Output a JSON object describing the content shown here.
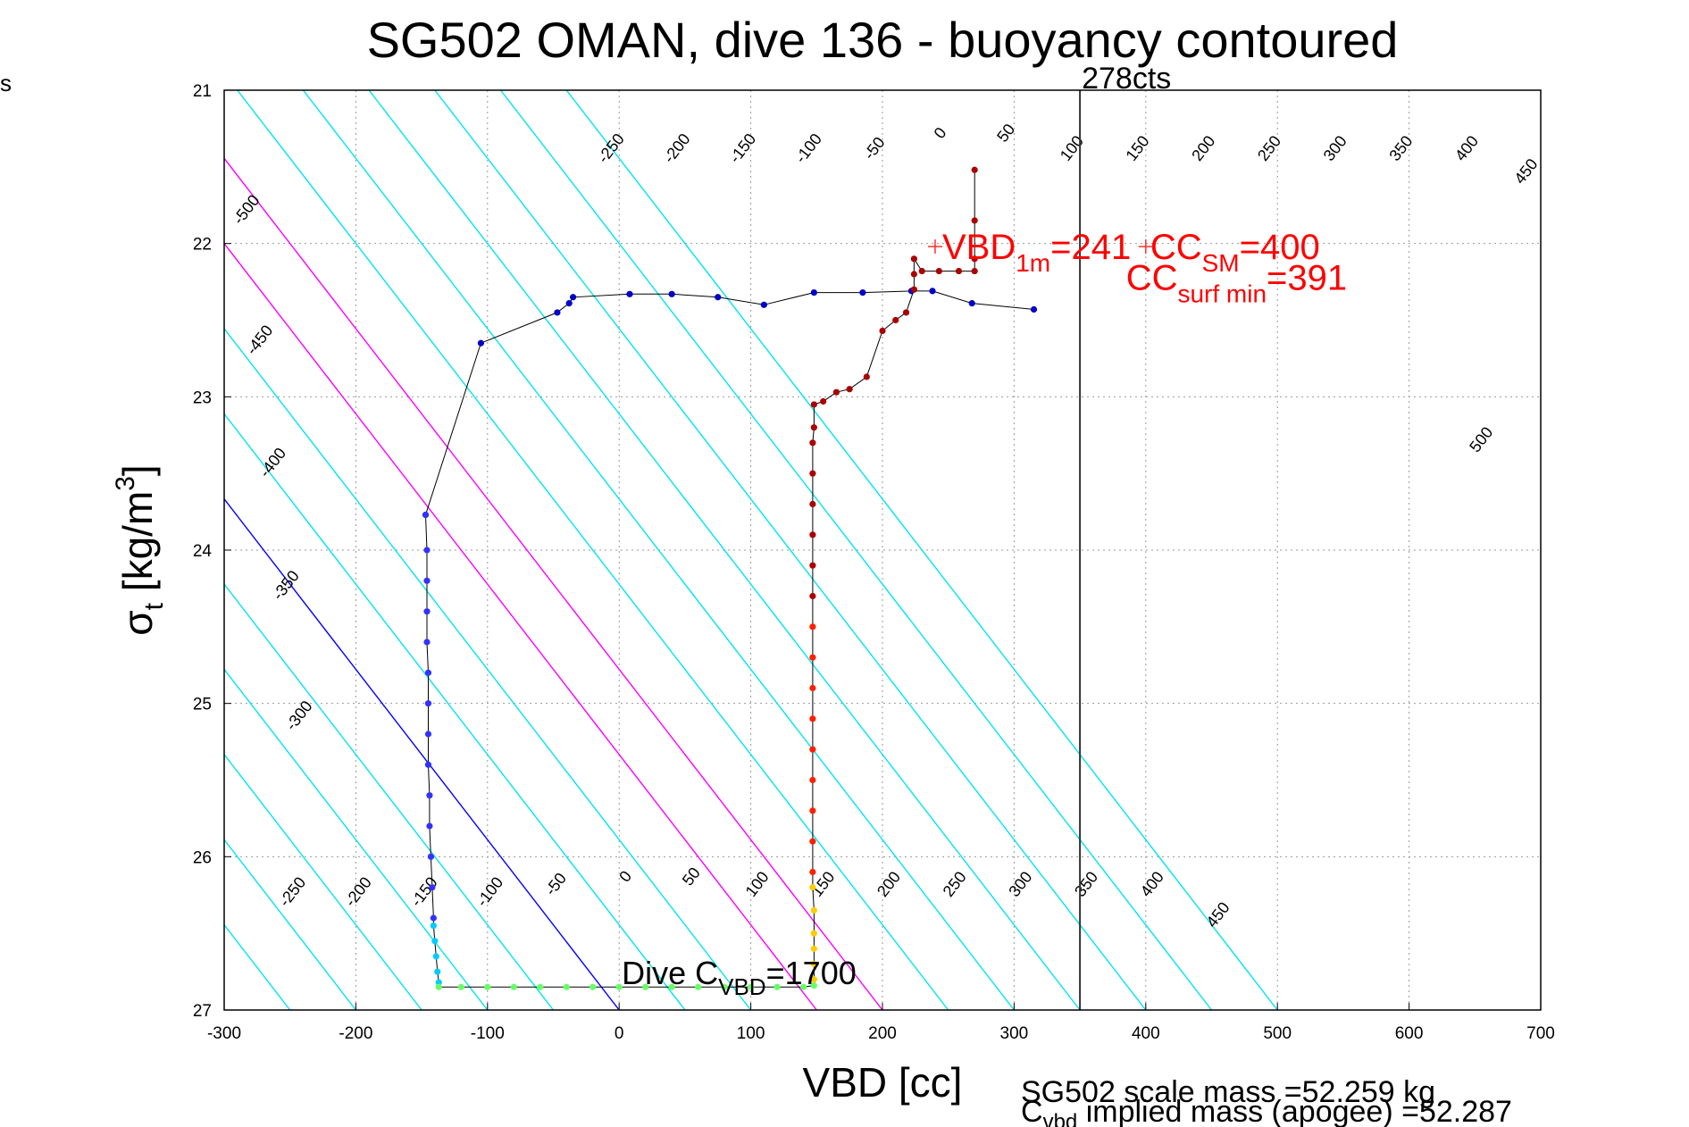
{
  "chart_data": {
    "type": "scatter",
    "title": "SG502 OMAN, dive 136 - buoyancy contoured",
    "corner_label": "s",
    "xlabel": "VBD [cc]",
    "ylabel_main": "σ",
    "ylabel_sub": "t",
    "ylabel_rest": " [kg/m",
    "ylabel_sup": "3",
    "ylabel_close": "]",
    "xlim": [
      -300,
      700
    ],
    "ylim": [
      27,
      21
    ],
    "y_reversed": true,
    "grid": "dotted",
    "x_ticks": [
      -300,
      -200,
      -100,
      0,
      100,
      200,
      300,
      400,
      500,
      600,
      700
    ],
    "x_tick_labels": [
      "-300",
      "-200",
      "-100",
      "0",
      "100",
      "200",
      "300",
      "400",
      "500",
      "600",
      "700"
    ],
    "y_ticks": [
      21,
      22,
      23,
      24,
      25,
      26,
      27
    ],
    "y_tick_labels": [
      "21",
      "22",
      "23",
      "24",
      "25",
      "26",
      "27"
    ],
    "contour_slope_cc_per_sigma": 90,
    "contour_levels": [
      -500,
      -450,
      -400,
      -350,
      -300,
      -250,
      -200,
      -150,
      -100,
      -50,
      0,
      50,
      100,
      150,
      200,
      250,
      300,
      350,
      400,
      450,
      500
    ],
    "contour_level_labels": [
      "-500",
      "-450",
      "-400",
      "-350",
      "-300",
      "-250",
      "-200",
      "-150",
      "-100",
      "-50",
      "0",
      "50",
      "100",
      "150",
      "200",
      "250",
      "300",
      "350",
      "400",
      "450",
      "500"
    ],
    "contour_colors": {
      "default": "#00e5ee",
      "zero": "#0000ff",
      "highlight": "#ff00ff"
    },
    "highlight_levels": [
      150,
      200
    ],
    "contour_labels_top": [
      {
        "level": -500,
        "x": -280,
        "y": 21.8,
        "text": "-500"
      },
      {
        "level": -450,
        "x": -270,
        "y": 22.65,
        "text": "-450"
      },
      {
        "level": -400,
        "x": -260,
        "y": 23.45,
        "text": "-400"
      },
      {
        "level": -350,
        "x": -250,
        "y": 24.25,
        "text": "-350"
      },
      {
        "level": -300,
        "x": -240,
        "y": 25.1,
        "text": "-300"
      },
      {
        "level": -250,
        "x": -3,
        "y": 21.4,
        "text": "-250"
      },
      {
        "level": -200,
        "x": 47,
        "y": 21.4,
        "text": "-200"
      },
      {
        "level": -150,
        "x": 97,
        "y": 21.4,
        "text": "-150"
      },
      {
        "level": -100,
        "x": 147,
        "y": 21.4,
        "text": "-100"
      },
      {
        "level": -50,
        "x": 197,
        "y": 21.4,
        "text": "-50"
      },
      {
        "level": 0,
        "x": 247,
        "y": 21.3,
        "text": "0"
      },
      {
        "level": 50,
        "x": 297,
        "y": 21.3,
        "text": "50"
      },
      {
        "level": 100,
        "x": 347,
        "y": 21.4,
        "text": "100"
      },
      {
        "level": 150,
        "x": 397,
        "y": 21.4,
        "text": "150"
      },
      {
        "level": 200,
        "x": 447,
        "y": 21.4,
        "text": "200"
      },
      {
        "level": 250,
        "x": 497,
        "y": 21.4,
        "text": "250"
      },
      {
        "level": 300,
        "x": 547,
        "y": 21.4,
        "text": "300"
      },
      {
        "level": 350,
        "x": 597,
        "y": 21.4,
        "text": "350"
      },
      {
        "level": 400,
        "x": 647,
        "y": 21.4,
        "text": "400"
      },
      {
        "level": 450,
        "x": 692,
        "y": 21.55,
        "text": "450"
      },
      {
        "level": 500,
        "x": 658,
        "y": 23.3,
        "text": "500"
      }
    ],
    "contour_labels_bottom": [
      {
        "level": -250,
        "x": -245,
        "y": 26.25,
        "text": "-250"
      },
      {
        "level": -200,
        "x": -195,
        "y": 26.25,
        "text": "-200"
      },
      {
        "level": -150,
        "x": -145,
        "y": 26.25,
        "text": "-150"
      },
      {
        "level": -100,
        "x": -95,
        "y": 26.25,
        "text": "-100"
      },
      {
        "level": -50,
        "x": -45,
        "y": 26.2,
        "text": "-50"
      },
      {
        "level": 0,
        "x": 8,
        "y": 26.15,
        "text": "0"
      },
      {
        "level": 50,
        "x": 58,
        "y": 26.15,
        "text": "50"
      },
      {
        "level": 100,
        "x": 108,
        "y": 26.2,
        "text": "100"
      },
      {
        "level": 150,
        "x": 158,
        "y": 26.2,
        "text": "150"
      },
      {
        "level": 200,
        "x": 208,
        "y": 26.2,
        "text": "200"
      },
      {
        "level": 250,
        "x": 258,
        "y": 26.2,
        "text": "250"
      },
      {
        "level": 300,
        "x": 308,
        "y": 26.2,
        "text": "300"
      },
      {
        "level": 350,
        "x": 358,
        "y": 26.2,
        "text": "350"
      },
      {
        "level": 400,
        "x": 408,
        "y": 26.2,
        "text": "400"
      },
      {
        "level": 450,
        "x": 458,
        "y": 26.4,
        "text": "450"
      }
    ],
    "vertical_line": {
      "x": 350,
      "label": "278cts"
    },
    "annotations": {
      "vbd_1m": {
        "x": 240,
        "y": 22.02,
        "main": "VBD",
        "sub": "1m",
        "rest": "=241"
      },
      "cc_sm": {
        "x": 398,
        "y": 22.02,
        "main": "CC",
        "sub": "SM",
        "rest": "=400"
      },
      "cc_surf": {
        "x": 385,
        "y": 22.22,
        "main": "CC",
        "sub": "surf min",
        "rest": "=391"
      },
      "dive_c": {
        "x": 2,
        "y": 26.75,
        "main": "Dive C",
        "sub": "VBD",
        "rest": "=1700"
      }
    },
    "footer": {
      "scale_mass": "SG502 scale mass =52.259 kg",
      "implied_main": "C",
      "implied_sub": "vbd",
      "implied_rest": " implied mass (apogee) =52.287"
    },
    "series": [
      {
        "name": "",
        "color": "#0000c8",
        "points": [
          [
            315,
            22.43
          ],
          [
            268,
            22.39
          ],
          [
            238,
            22.31
          ],
          [
            222,
            22.31
          ],
          [
            185,
            22.32
          ],
          [
            148,
            22.32
          ],
          [
            110,
            22.4
          ],
          [
            75,
            22.35
          ],
          [
            40,
            22.33
          ],
          [
            8,
            22.33
          ],
          [
            -35,
            22.35
          ],
          [
            -38,
            22.39
          ],
          [
            -47,
            22.45
          ],
          [
            -105,
            22.65
          ],
          [
            -147,
            23.77
          ]
        ]
      },
      {
        "name": "",
        "color": "#3232ff",
        "points": [
          [
            -147,
            23.77
          ],
          [
            -146,
            24.0
          ],
          [
            -146,
            24.2
          ],
          [
            -146,
            24.4
          ],
          [
            -146,
            24.6
          ],
          [
            -145,
            24.8
          ],
          [
            -145,
            25.0
          ],
          [
            -145,
            25.2
          ],
          [
            -145,
            25.4
          ],
          [
            -144,
            25.6
          ],
          [
            -144,
            25.8
          ],
          [
            -143,
            26.0
          ],
          [
            -142,
            26.2
          ],
          [
            -141,
            26.4
          ]
        ]
      },
      {
        "name": "",
        "color": "#00ccff",
        "points": [
          [
            -141,
            26.45
          ],
          [
            -140,
            26.55
          ],
          [
            -139,
            26.65
          ],
          [
            -138,
            26.75
          ],
          [
            -137,
            26.82
          ]
        ]
      },
      {
        "name": "",
        "color": "#66ff66",
        "points": [
          [
            -137,
            26.85
          ],
          [
            -120,
            26.85
          ],
          [
            -100,
            26.85
          ],
          [
            -80,
            26.85
          ],
          [
            -60,
            26.85
          ],
          [
            -40,
            26.85
          ],
          [
            -20,
            26.85
          ],
          [
            0,
            26.85
          ],
          [
            20,
            26.85
          ],
          [
            40,
            26.85
          ],
          [
            60,
            26.85
          ],
          [
            80,
            26.85
          ],
          [
            100,
            26.85
          ],
          [
            120,
            26.85
          ],
          [
            140,
            26.85
          ],
          [
            148,
            26.84
          ]
        ]
      },
      {
        "name": "",
        "color": "#ffcc00",
        "points": [
          [
            148,
            26.8
          ],
          [
            148,
            26.7
          ],
          [
            148,
            26.6
          ],
          [
            148,
            26.5
          ],
          [
            148,
            26.35
          ],
          [
            147,
            26.2
          ]
        ]
      },
      {
        "name": "",
        "color": "#ff2000",
        "points": [
          [
            147,
            26.1
          ],
          [
            147,
            25.9
          ],
          [
            147,
            25.7
          ],
          [
            147,
            25.5
          ],
          [
            147,
            25.3
          ],
          [
            147,
            25.1
          ],
          [
            147,
            24.9
          ],
          [
            147,
            24.7
          ],
          [
            147,
            24.5
          ]
        ]
      },
      {
        "name": "",
        "color": "#aa0000",
        "points": [
          [
            147,
            24.3
          ],
          [
            147,
            24.1
          ],
          [
            147,
            23.9
          ],
          [
            147,
            23.7
          ],
          [
            147,
            23.5
          ],
          [
            147,
            23.3
          ],
          [
            148,
            23.2
          ],
          [
            148,
            23.05
          ],
          [
            155,
            23.03
          ],
          [
            165,
            22.97
          ],
          [
            175,
            22.95
          ],
          [
            188,
            22.87
          ],
          [
            200,
            22.57
          ],
          [
            210,
            22.5
          ],
          [
            218,
            22.45
          ],
          [
            224,
            22.3
          ],
          [
            224,
            22.2
          ],
          [
            224,
            22.1
          ],
          [
            230,
            22.18
          ],
          [
            243,
            22.18
          ],
          [
            258,
            22.18
          ],
          [
            270,
            22.18
          ],
          [
            270,
            22.1
          ],
          [
            270,
            21.85
          ],
          [
            270,
            21.52
          ]
        ]
      }
    ]
  }
}
